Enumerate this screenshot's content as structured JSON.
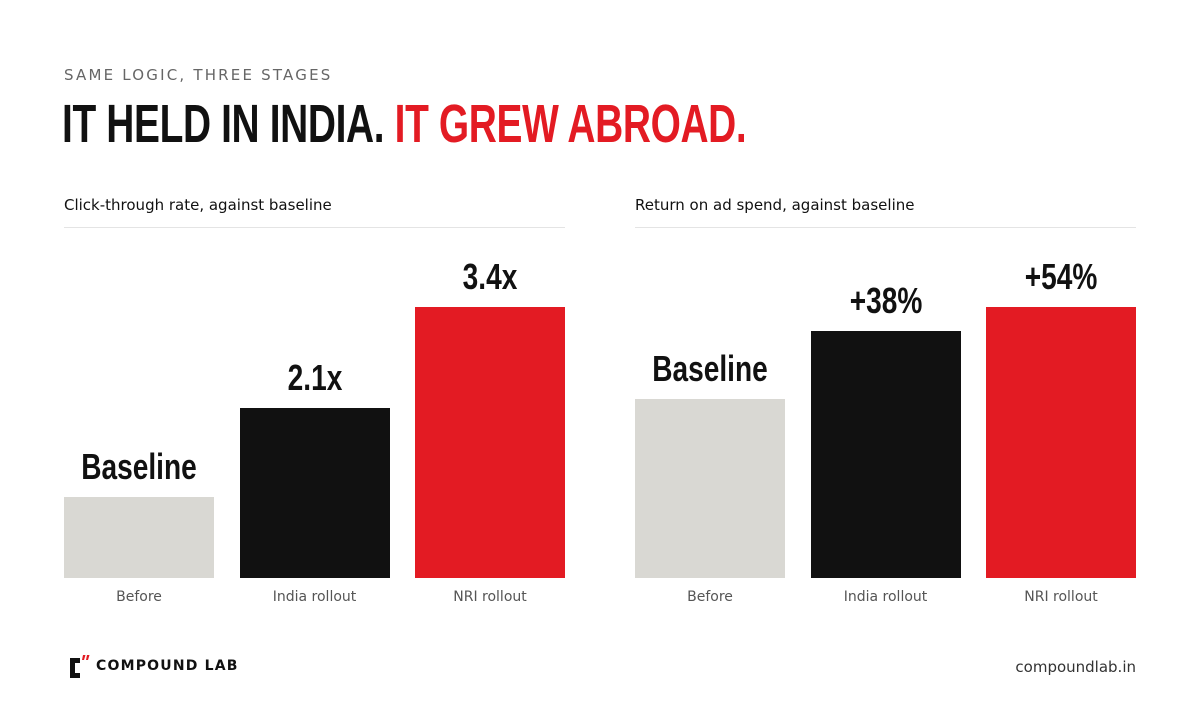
{
  "header": {
    "eyebrow": "SAME LOGIC, THREE STAGES",
    "headline_part1": "IT HELD IN INDIA.",
    "headline_part2": "IT GREW ABROAD."
  },
  "colors": {
    "accent": "#e31b23",
    "dark": "#111111",
    "baseline_bar": "#d9d8d3"
  },
  "chart_data": [
    {
      "type": "bar",
      "title": "Click-through rate, against baseline",
      "categories": [
        "Before",
        "India rollout",
        "NRI rollout"
      ],
      "values": [
        1.0,
        2.1,
        3.4
      ],
      "value_labels": [
        "Baseline",
        "2.1x",
        "3.4x"
      ],
      "colors": [
        "#d9d8d3",
        "#111111",
        "#e31b23"
      ],
      "ylim": [
        0,
        3.4
      ],
      "grid": false
    },
    {
      "type": "bar",
      "title": "Return on ad spend, against baseline",
      "categories": [
        "Before",
        "India rollout",
        "NRI rollout"
      ],
      "values": [
        100,
        138,
        154
      ],
      "value_labels": [
        "Baseline",
        "+38%",
        "+54%"
      ],
      "colors": [
        "#d9d8d3",
        "#111111",
        "#e31b23"
      ],
      "ylim": [
        0,
        154
      ],
      "grid": false
    }
  ],
  "footer": {
    "brand": "COMPOUND LAB",
    "url": "compoundlab.in",
    "logo_icon": "compound-lab-logo-icon"
  }
}
